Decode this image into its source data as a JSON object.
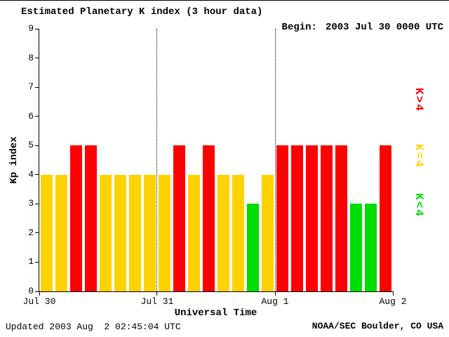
{
  "header": {
    "title": "Estimated Planetary K index (3 hour data)",
    "begin_label": "Begin:",
    "begin_value": "2003 Jul 30 0000 UTC"
  },
  "axes": {
    "x_label": "Universal Time",
    "y_label": "Kp index"
  },
  "footer": {
    "updated": "Updated 2003 Aug  2 02:45:04 UTC",
    "credit": "NOAA/SEC Boulder, CO USA"
  },
  "chart_data": {
    "type": "bar",
    "title": "Estimated Planetary K index (3 hour data)",
    "begin": "2003 Jul 30 0000 UTC",
    "xlabel": "Universal Time",
    "ylabel": "Kp index",
    "ylim": [
      0,
      9
    ],
    "yticks": [
      0,
      1,
      2,
      3,
      4,
      5,
      6,
      7,
      8,
      9
    ],
    "xticks": [
      {
        "label": "Jul 30",
        "frac": 0
      },
      {
        "label": "Jul 31",
        "frac": 0.33333
      },
      {
        "label": "Aug 1",
        "frac": 0.66667
      },
      {
        "label": "Aug 2",
        "frac": 1
      }
    ],
    "bar_interval_hours": 3,
    "values": [
      4,
      4,
      5,
      5,
      4,
      4,
      4,
      4,
      4,
      5,
      4,
      5,
      4,
      4,
      3,
      4,
      5,
      5,
      5,
      5,
      5,
      3,
      3,
      5
    ],
    "color_rule": {
      "above_4": "#ff0000",
      "equal_4": "#ffd200",
      "below_4": "#00dd00"
    },
    "legend": [
      {
        "label": "K>4",
        "color": "#ff0000"
      },
      {
        "label": "K=4",
        "color": "#ffd200"
      },
      {
        "label": "K<4",
        "color": "#00dd00"
      }
    ],
    "grid": "dotted vertical lines at day boundaries",
    "legend_position": "right"
  }
}
